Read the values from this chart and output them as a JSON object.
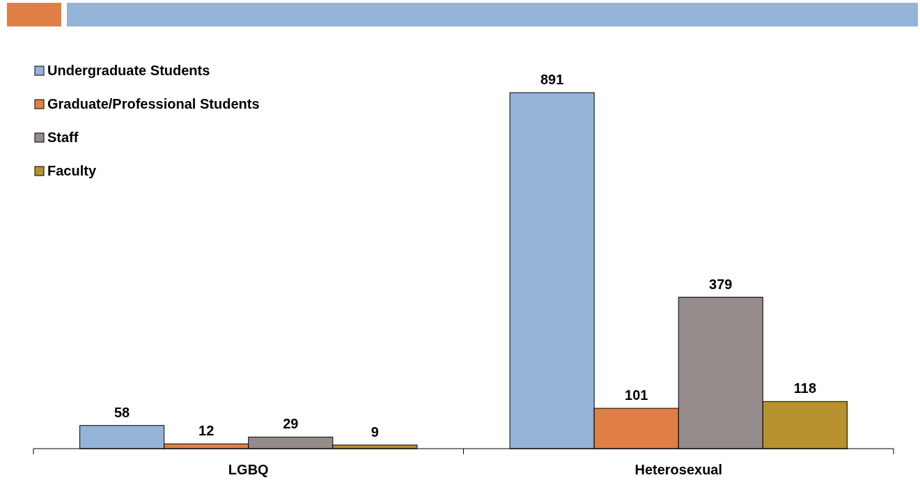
{
  "chart_data": {
    "type": "bar",
    "categories": [
      "LGBQ",
      "Heterosexual"
    ],
    "series": [
      {
        "name": "Undergraduate Students",
        "color": "#95b3d7",
        "values": [
          58,
          891
        ]
      },
      {
        "name": "Graduate/Professional Students",
        "color": "#e07f45",
        "values": [
          12,
          101
        ]
      },
      {
        "name": "Staff",
        "color": "#948b8b",
        "values": [
          29,
          379
        ]
      },
      {
        "name": "Faculty",
        "color": "#b8912f",
        "values": [
          9,
          118
        ]
      }
    ],
    "data_labels": true,
    "legend": "top left",
    "grid": false
  }
}
